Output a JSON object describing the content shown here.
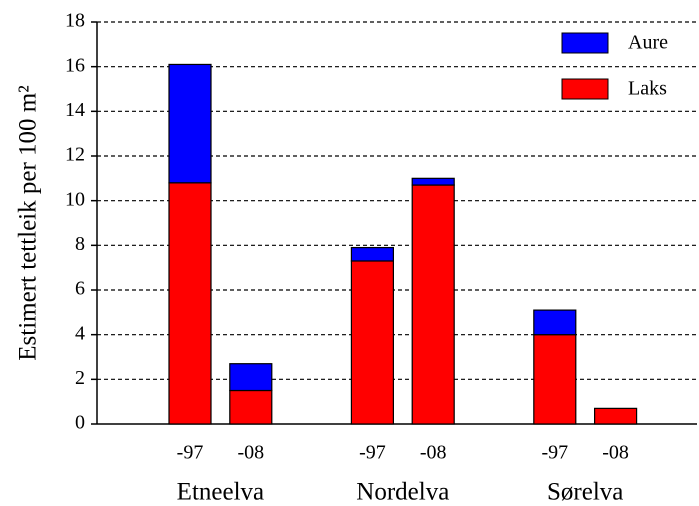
{
  "chart_data": {
    "type": "stacked-bar",
    "y_label": "Estimert tettleik per 100 m²",
    "categories": [
      "-97",
      "-08",
      "-97",
      "-08",
      "-97",
      "-08"
    ],
    "groups": [
      "Etneelva",
      "Nordelva",
      "Sørelva"
    ],
    "series": [
      {
        "name": "Laks",
        "color": "#ff0000",
        "values": [
          10.8,
          1.5,
          7.3,
          10.7,
          4.0,
          0.7
        ]
      },
      {
        "name": "Aure",
        "color": "#0000ff",
        "values": [
          5.3,
          1.2,
          0.6,
          0.3,
          1.1,
          0
        ]
      }
    ],
    "ylim": [
      0,
      18
    ],
    "yticks": [
      0,
      2,
      4,
      6,
      8,
      10,
      12,
      14,
      16,
      18
    ],
    "grid": true,
    "legend": "upper right"
  }
}
